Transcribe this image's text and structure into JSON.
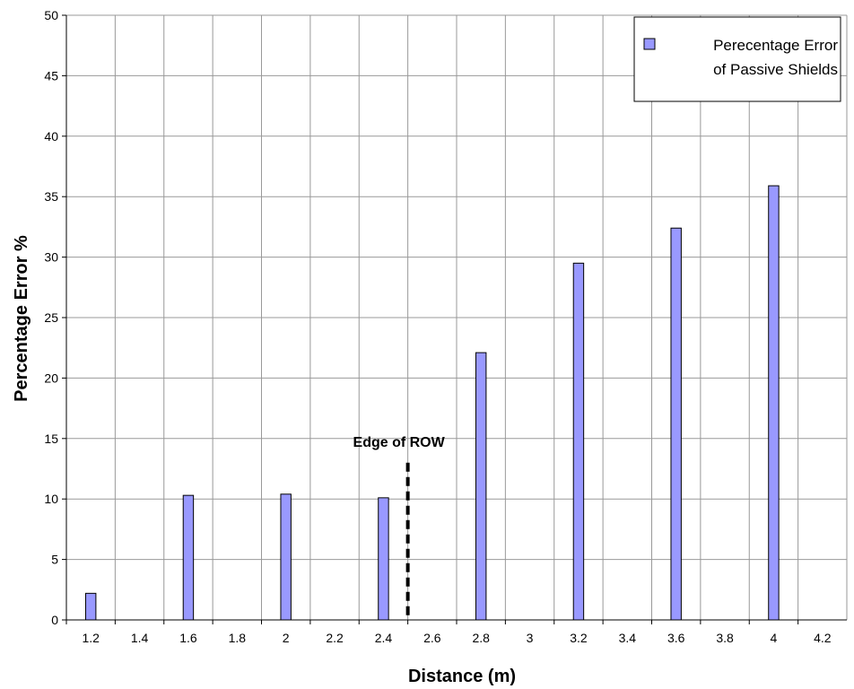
{
  "chart_data": {
    "type": "bar",
    "xlabel": "Distance (m)",
    "ylabel": "Percentage Error %",
    "ylim": [
      0,
      50
    ],
    "ytick_step": 5,
    "x_categories": [
      "1.2",
      "1.4",
      "1.6",
      "1.8",
      "2",
      "2.2",
      "2.4",
      "2.6",
      "2.8",
      "3",
      "3.2",
      "3.4",
      "3.6",
      "3.8",
      "4",
      "4.2"
    ],
    "series": [
      {
        "name": "Perecentage Error of Passive Shields",
        "color": "#9999ff",
        "points": [
          {
            "x": "1.2",
            "y": 2.2
          },
          {
            "x": "1.6",
            "y": 10.3
          },
          {
            "x": "2",
            "y": 10.4
          },
          {
            "x": "2.4",
            "y": 10.1
          },
          {
            "x": "2.8",
            "y": 22.1
          },
          {
            "x": "3.2",
            "y": 29.5
          },
          {
            "x": "3.6",
            "y": 32.4
          },
          {
            "x": "4",
            "y": 35.9
          }
        ]
      }
    ],
    "legend": {
      "position": "top-right",
      "line1": "Perecentage Error",
      "line2": "of Passive Shields"
    },
    "annotation": {
      "text": "Edge of ROW",
      "x": 2.5,
      "y_top": 13,
      "style": "dashed"
    },
    "grid": true
  }
}
